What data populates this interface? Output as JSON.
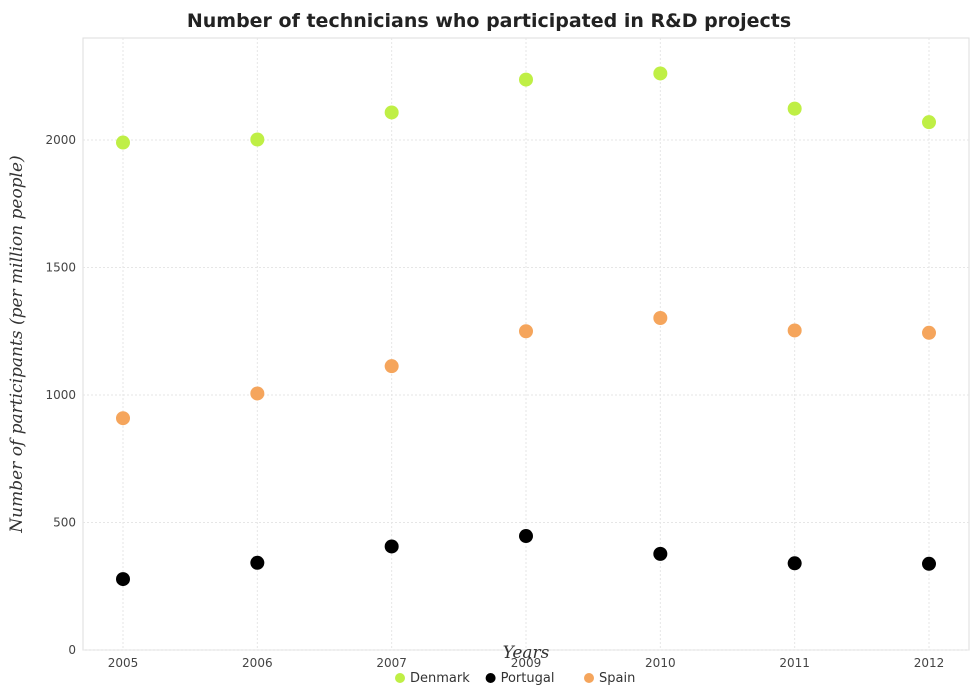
{
  "chart_data": {
    "type": "scatter",
    "title": "Number of technicians who participated in R&D projects",
    "xlabel": "Years",
    "ylabel": "Number of participants (per million people)",
    "categories": [
      "2005",
      "2006",
      "2007",
      "2009",
      "2010",
      "2011",
      "2012"
    ],
    "ylim": [
      0,
      2400
    ],
    "yticks": [
      "0",
      "500",
      "1000",
      "1500",
      "2000"
    ],
    "ytick_values": [
      0,
      500,
      1000,
      1500,
      2000
    ],
    "grid": true,
    "legend_position": "bottom-center",
    "series": [
      {
        "name": "Denmark",
        "color": "#bfef45",
        "values": [
          1990,
          2002,
          2108,
          2237,
          2261,
          2123,
          2070
        ]
      },
      {
        "name": "Portugal",
        "color": "#000000",
        "values": [
          278,
          342,
          406,
          447,
          377,
          340,
          338
        ]
      },
      {
        "name": "Spain",
        "color": "#f5a55c",
        "values": [
          909,
          1006,
          1113,
          1250,
          1302,
          1253,
          1244
        ]
      }
    ]
  }
}
